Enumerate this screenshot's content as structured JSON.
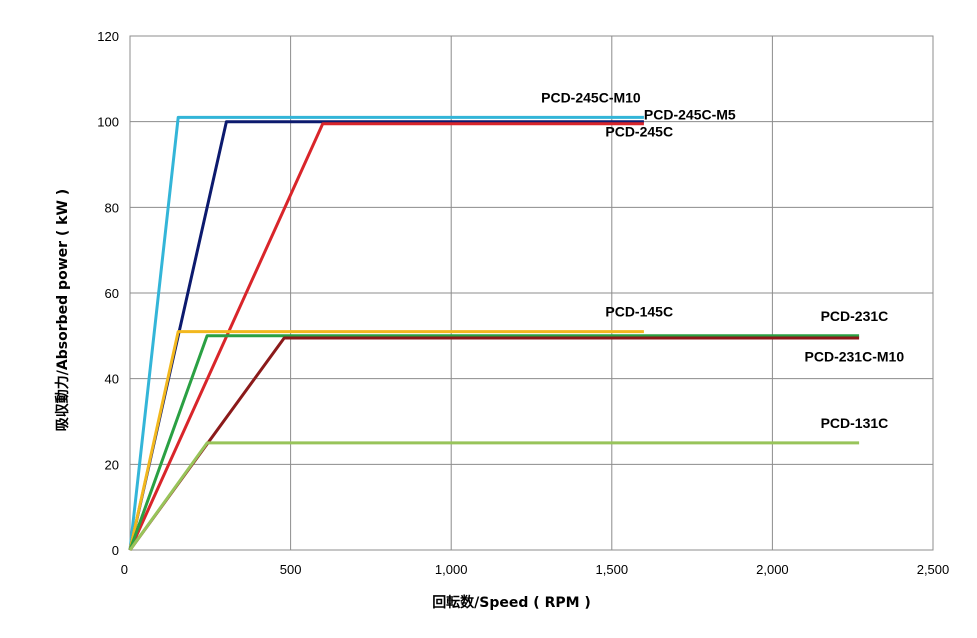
{
  "chart_data": {
    "type": "line",
    "title": "",
    "xlabel": "回転数/Speed ( RPM )",
    "ylabel": "吸収動力/Absorbed power ( kW )",
    "xlim": [
      0,
      2500
    ],
    "ylim": [
      0,
      120
    ],
    "x_ticks": [
      0,
      500,
      1000,
      1500,
      2000,
      2500
    ],
    "x_tick_labels": [
      "0",
      "500",
      "1,000",
      "1,500",
      "2,000",
      "2,500"
    ],
    "y_ticks": [
      0,
      20,
      40,
      60,
      80,
      100,
      120
    ],
    "y_tick_labels": [
      "0",
      "20",
      "40",
      "60",
      "80",
      "100",
      "120"
    ],
    "grid": true,
    "legend": "none",
    "series": [
      {
        "name": "PCD-245C-M10",
        "color": "#33b5d8",
        "points": [
          [
            0,
            0
          ],
          [
            150,
            101
          ],
          [
            1600,
            101
          ]
        ]
      },
      {
        "name": "PCD-245C-M5",
        "color": "#0c1a6e",
        "points": [
          [
            0,
            0
          ],
          [
            300,
            100
          ],
          [
            1600,
            100
          ]
        ]
      },
      {
        "name": "PCD-245C",
        "color": "#d9252a",
        "points": [
          [
            0,
            0
          ],
          [
            600,
            99.5
          ],
          [
            1600,
            99.5
          ]
        ]
      },
      {
        "name": "PCD-145C",
        "color": "#f2b81e",
        "points": [
          [
            0,
            0
          ],
          [
            150,
            51
          ],
          [
            1600,
            51
          ]
        ]
      },
      {
        "name": "PCD-231C",
        "color": "#2aa043",
        "points": [
          [
            0,
            0
          ],
          [
            240,
            50
          ],
          [
            2270,
            50
          ]
        ]
      },
      {
        "name": "PCD-231C-M10",
        "color": "#8b1a1a",
        "points": [
          [
            0,
            0
          ],
          [
            480,
            49.5
          ],
          [
            2270,
            49.5
          ]
        ]
      },
      {
        "name": "PCD-131C",
        "color": "#98c45a",
        "points": [
          [
            0,
            0
          ],
          [
            240,
            25
          ],
          [
            2270,
            25
          ]
        ]
      }
    ],
    "annotations": [
      {
        "text": "PCD-245C-M10",
        "x": 1280,
        "y": 104.5
      },
      {
        "text": "PCD-245C-M5",
        "x": 1600,
        "y": 100.5
      },
      {
        "text": "PCD-245C",
        "x": 1480,
        "y": 96.5
      },
      {
        "text": "PCD-145C",
        "x": 1480,
        "y": 54.5
      },
      {
        "text": "PCD-231C",
        "x": 2150,
        "y": 53.5
      },
      {
        "text": "PCD-231C-M10",
        "x": 2100,
        "y": 44
      },
      {
        "text": "PCD-131C",
        "x": 2150,
        "y": 28.5
      }
    ]
  }
}
